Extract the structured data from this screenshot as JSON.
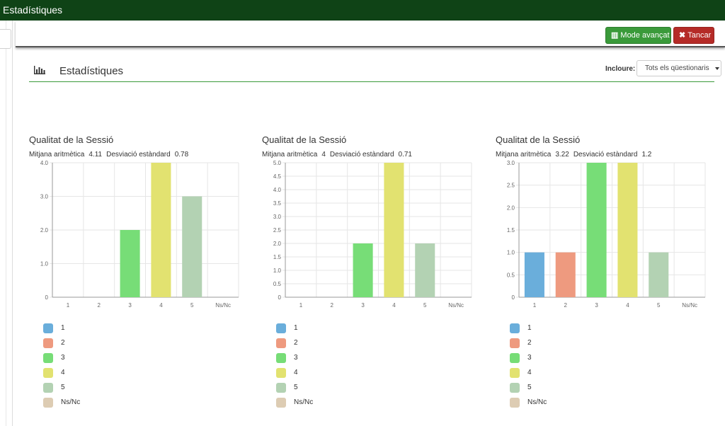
{
  "window": {
    "title": "Estadístiques"
  },
  "toolbar": {
    "advanced_label": "Mode avançat",
    "close_label": "Tancar"
  },
  "section": {
    "title": "Estadístiques"
  },
  "filter": {
    "label": "Incloure:",
    "selected": "Tots els qüestionaris"
  },
  "colors": {
    "1": "#6aaedb",
    "2": "#ee9a7f",
    "3": "#77dd77",
    "4": "#e2e270",
    "5": "#b3d2b3",
    "Ns/Nc": "#ddccb3"
  },
  "legend": [
    "1",
    "2",
    "3",
    "4",
    "5",
    "Ns/Nc"
  ],
  "charts": [
    {
      "title": "Qualitat de la Sessió",
      "mean_label": "Mitjana aritmètica",
      "mean": "4.11",
      "sd_label": "Desviació estàndard",
      "sd": "0.78"
    },
    {
      "title": "Qualitat de la Sessió",
      "mean_label": "Mitjana aritmètica",
      "mean": "4",
      "sd_label": "Desviació estàndard",
      "sd": "0.71"
    },
    {
      "title": "Qualitat de la Sessió",
      "mean_label": "Mitjana aritmètica",
      "mean": "3.22",
      "sd_label": "Desviació estàndard",
      "sd": "1.2"
    }
  ],
  "chart_data": [
    {
      "type": "bar",
      "categories": [
        "1",
        "2",
        "3",
        "4",
        "5",
        "Ns/Nc"
      ],
      "values": [
        0,
        0,
        2,
        4,
        3,
        0
      ],
      "ylim": [
        0,
        4
      ],
      "yticks": [
        "0",
        "1.0",
        "2.0",
        "3.0",
        "4.0"
      ],
      "grid": true
    },
    {
      "type": "bar",
      "categories": [
        "1",
        "2",
        "3",
        "4",
        "5",
        "Ns/Nc"
      ],
      "values": [
        0,
        0,
        2,
        5,
        2,
        0
      ],
      "ylim": [
        0,
        5
      ],
      "yticks": [
        "0",
        "0.5",
        "1.0",
        "1.5",
        "2.0",
        "2.5",
        "3.0",
        "3.5",
        "4.0",
        "4.5",
        "5.0"
      ],
      "grid": true
    },
    {
      "type": "bar",
      "categories": [
        "1",
        "2",
        "3",
        "4",
        "5",
        "Ns/Nc"
      ],
      "values": [
        1,
        1,
        3,
        3,
        1,
        0
      ],
      "ylim": [
        0,
        3
      ],
      "yticks": [
        "0",
        "0.5",
        "1.0",
        "1.5",
        "2.0",
        "2.5",
        "3.0"
      ],
      "grid": true
    }
  ]
}
